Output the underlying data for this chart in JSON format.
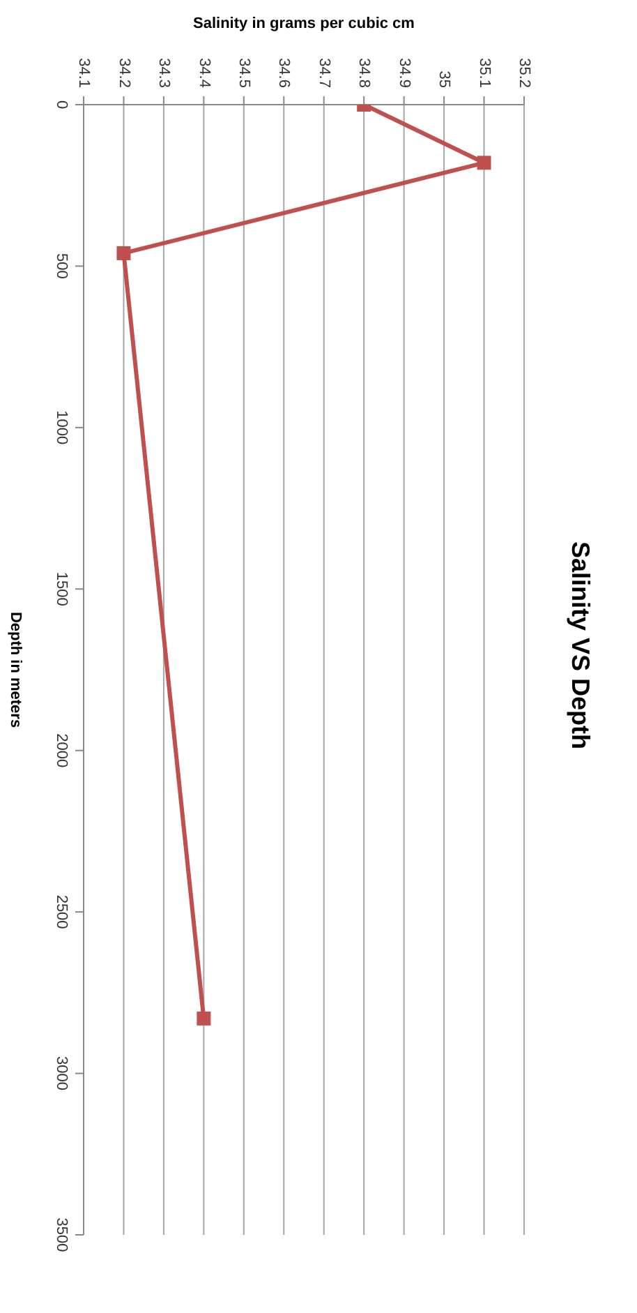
{
  "chart_data": {
    "type": "line",
    "title": "Salinity VS Depth",
    "xlabel": "Salinity in grams per cubic cm",
    "ylabel": "Depth in meters",
    "series": [
      {
        "color": "#c0504d",
        "x": [
          34.8,
          35.1,
          34.2,
          34.4
        ],
        "values": [
          0,
          180,
          460,
          2830
        ]
      }
    ],
    "xlim": [
      34.1,
      35.2
    ],
    "xticks": [
      34.1,
      34.2,
      34.3,
      34.4,
      34.5,
      34.6,
      34.7,
      34.8,
      34.9,
      35,
      35.1,
      35.2
    ],
    "ylim": [
      3500,
      0
    ],
    "yticks": [
      0,
      500,
      1000,
      1500,
      2000,
      2500,
      3000,
      3500
    ],
    "grid": "x",
    "marker": "square",
    "line_style": "solid",
    "legend": false
  }
}
